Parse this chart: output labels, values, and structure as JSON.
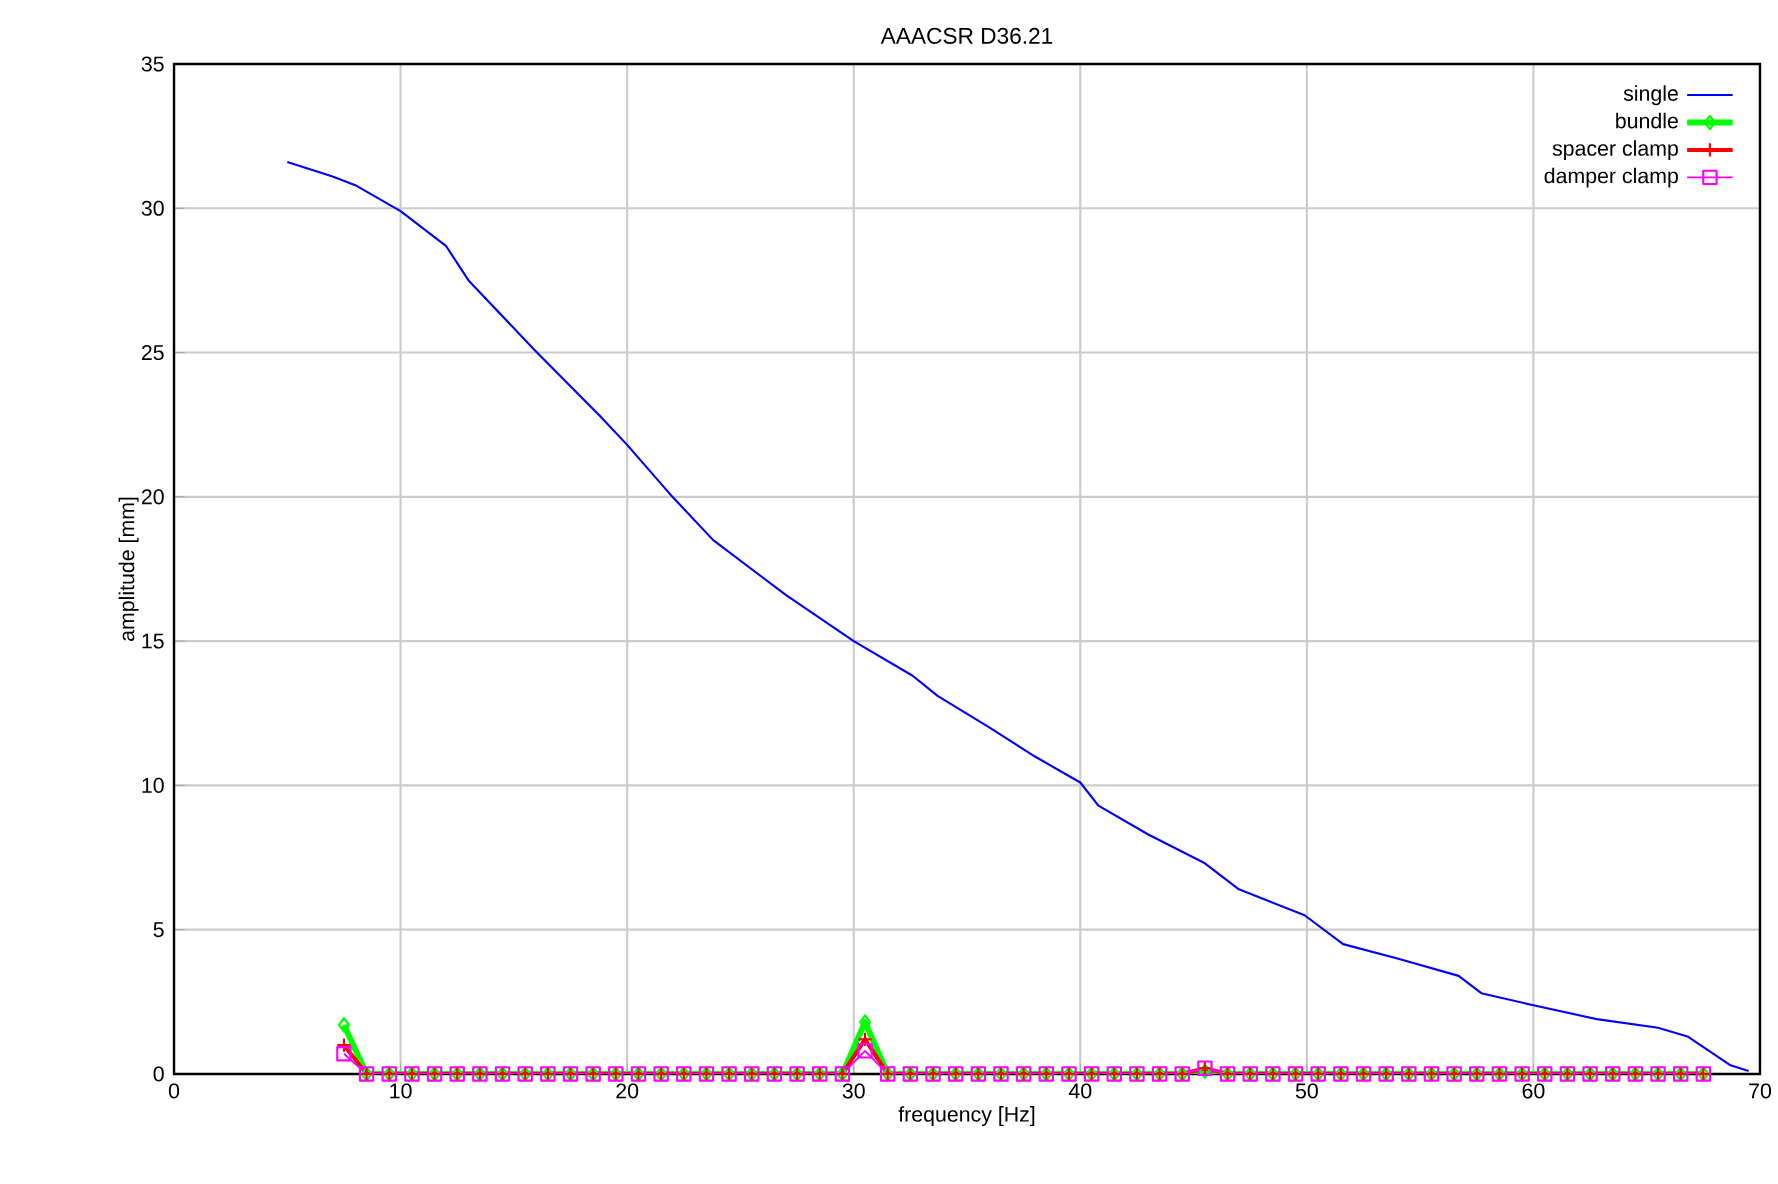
{
  "chart_data": {
    "type": "line",
    "title": "AAACSR D36.21",
    "xlabel": "frequency [Hz]",
    "ylabel": "amplitude [mm]",
    "xlim": [
      0,
      70
    ],
    "ylim": [
      0,
      35
    ],
    "xticks": [
      0,
      10,
      20,
      30,
      40,
      50,
      60,
      70
    ],
    "yticks": [
      0,
      5,
      10,
      15,
      20,
      25,
      30,
      35
    ],
    "grid": true,
    "legend": "top right",
    "series": [
      {
        "name": "single",
        "color": "#0000ff",
        "marker": "none",
        "x": [
          5,
          7,
          8,
          10,
          12,
          13,
          15.9,
          18.8,
          20,
          22,
          23.8,
          27,
          30,
          32.6,
          33.7,
          36,
          38,
          40,
          40.8,
          43,
          45.5,
          47,
          49.9,
          51.6,
          54,
          56.7,
          57.7,
          59.9,
          62.8,
          65.5,
          66.8,
          68.7,
          69.5
        ],
        "values": [
          31.6,
          31.1,
          30.8,
          29.9,
          28.7,
          27.5,
          25.1,
          22.8,
          21.8,
          20.0,
          18.5,
          16.6,
          15.0,
          13.8,
          13.1,
          12.0,
          11.0,
          10.1,
          9.3,
          8.3,
          7.3,
          6.4,
          5.5,
          4.5,
          4.0,
          3.4,
          2.8,
          2.4,
          1.9,
          1.6,
          1.3,
          0.3,
          0.1
        ]
      },
      {
        "name": "bundle",
        "color": "#00ff00",
        "marker": "diamond",
        "x": [
          7.5,
          8.5,
          9.5,
          10.5,
          11.5,
          12.5,
          13.5,
          14.5,
          15.5,
          16.5,
          17.5,
          18.5,
          19.5,
          20.5,
          21.5,
          22.5,
          23.5,
          24.5,
          25.5,
          26.5,
          27.5,
          28.5,
          29.5,
          30.5,
          31.5,
          32.5,
          33.5,
          34.5,
          35.5,
          36.5,
          37.5,
          38.5,
          39.5,
          40.5,
          41.5,
          42.5,
          43.5,
          44.5,
          45.5,
          46.5,
          47.5,
          48.5,
          49.5,
          50.5,
          51.5,
          52.5,
          53.5,
          54.5,
          55.5,
          56.5,
          57.5,
          58.5,
          59.5,
          60.5,
          61.5,
          62.5,
          63.5,
          64.5,
          65.5,
          66.5,
          67.5
        ],
        "values": [
          1.7,
          0,
          0,
          0,
          0,
          0,
          0,
          0,
          0,
          0,
          0,
          0,
          0,
          0,
          0,
          0,
          0,
          0,
          0,
          0,
          0,
          0,
          0,
          1.8,
          0,
          0,
          0,
          0,
          0,
          0,
          0,
          0,
          0,
          0,
          0,
          0,
          0,
          0,
          0.1,
          0,
          0,
          0,
          0,
          0,
          0,
          0,
          0,
          0,
          0,
          0,
          0,
          0,
          0,
          0,
          0,
          0,
          0,
          0,
          0,
          0,
          0
        ]
      },
      {
        "name": "spacer clamp",
        "color": "#ff0000",
        "marker": "cross",
        "x": [
          7.5,
          8.5,
          9.5,
          10.5,
          11.5,
          12.5,
          13.5,
          14.5,
          15.5,
          16.5,
          17.5,
          18.5,
          19.5,
          20.5,
          21.5,
          22.5,
          23.5,
          24.5,
          25.5,
          26.5,
          27.5,
          28.5,
          29.5,
          30.5,
          31.5,
          32.5,
          33.5,
          34.5,
          35.5,
          36.5,
          37.5,
          38.5,
          39.5,
          40.5,
          41.5,
          42.5,
          43.5,
          44.5,
          45.5,
          46.5,
          47.5,
          48.5,
          49.5,
          50.5,
          51.5,
          52.5,
          53.5,
          54.5,
          55.5,
          56.5,
          57.5,
          58.5,
          59.5,
          60.5,
          61.5,
          62.5,
          63.5,
          64.5,
          65.5,
          66.5,
          67.5
        ],
        "values": [
          1.0,
          0,
          0,
          0,
          0,
          0,
          0,
          0,
          0,
          0,
          0,
          0,
          0,
          0,
          0,
          0,
          0,
          0,
          0,
          0,
          0,
          0,
          0,
          1.2,
          0,
          0,
          0,
          0,
          0,
          0,
          0,
          0,
          0,
          0,
          0,
          0,
          0,
          0,
          0.2,
          0,
          0,
          0,
          0,
          0,
          0,
          0,
          0,
          0,
          0,
          0,
          0,
          0,
          0,
          0,
          0,
          0,
          0,
          0,
          0,
          0,
          0
        ]
      },
      {
        "name": "damper clamp",
        "color": "#ff00ff",
        "marker": "square",
        "x": [
          7.5,
          8.5,
          9.5,
          10.5,
          11.5,
          12.5,
          13.5,
          14.5,
          15.5,
          16.5,
          17.5,
          18.5,
          19.5,
          20.5,
          21.5,
          22.5,
          23.5,
          24.5,
          25.5,
          26.5,
          27.5,
          28.5,
          29.5,
          30.5,
          31.5,
          32.5,
          33.5,
          34.5,
          35.5,
          36.5,
          37.5,
          38.5,
          39.5,
          40.5,
          41.5,
          42.5,
          43.5,
          44.5,
          45.5,
          46.5,
          47.5,
          48.5,
          49.5,
          50.5,
          51.5,
          52.5,
          53.5,
          54.5,
          55.5,
          56.5,
          57.5,
          58.5,
          59.5,
          60.5,
          61.5,
          62.5,
          63.5,
          64.5,
          65.5,
          66.5,
          67.5
        ],
        "values": [
          0.7,
          0,
          0,
          0,
          0,
          0,
          0,
          0,
          0,
          0,
          0,
          0,
          0,
          0,
          0,
          0,
          0,
          0,
          0,
          0,
          0,
          0,
          0,
          0.8,
          0,
          0,
          0,
          0,
          0,
          0,
          0,
          0,
          0,
          0,
          0,
          0,
          0,
          0,
          0.2,
          0,
          0,
          0,
          0,
          0,
          0,
          0,
          0,
          0,
          0,
          0,
          0,
          0,
          0,
          0,
          0,
          0,
          0,
          0,
          0,
          0,
          0
        ]
      }
    ]
  }
}
